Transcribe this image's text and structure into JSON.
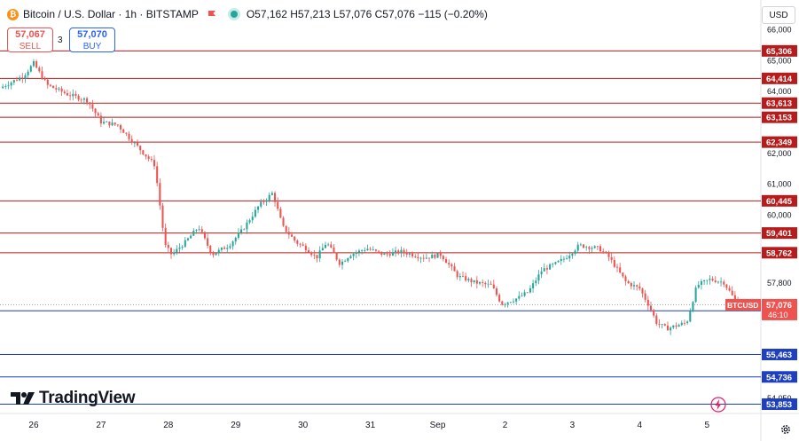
{
  "header": {
    "symbol_title": "Bitcoin / U.S. Dollar · 1h · BITSTAMP",
    "ohlc": "O57,162 H57,213 L57,076 C57,076 −115 (−0.20%)"
  },
  "trade": {
    "sell_price": "57,067",
    "sell_label": "SELL",
    "spread": "3",
    "buy_price": "57,070",
    "buy_label": "BUY"
  },
  "currency": "USD",
  "brand": "TradingView",
  "colors": {
    "up": "#26a69a",
    "down": "#ef5350",
    "resistance": "#b71c1c",
    "support": "#1e3fbf",
    "axis_text": "#131722"
  },
  "chart_data": {
    "type": "candlestick",
    "x_ticks": [
      {
        "label": "26",
        "x": 0.5
      },
      {
        "label": "27",
        "x": 1.5
      },
      {
        "label": "28",
        "x": 2.5
      },
      {
        "label": "29",
        "x": 3.5
      },
      {
        "label": "30",
        "x": 4.5
      },
      {
        "label": "31",
        "x": 5.5
      },
      {
        "label": "Sep",
        "x": 6.5
      },
      {
        "label": "2",
        "x": 7.5
      },
      {
        "label": "3",
        "x": 8.5
      },
      {
        "label": "4",
        "x": 9.5
      },
      {
        "label": "5",
        "x": 10.5
      }
    ],
    "xlim": [
      0,
      11.3
    ],
    "ylim": [
      53550,
      66150
    ],
    "y_ticks": [
      66000,
      65000,
      64000,
      62000,
      61000,
      60000,
      57800,
      54050
    ],
    "y_tick_labels": [
      "66,000",
      "65,000",
      "64,000",
      "62,000",
      "61,000",
      "60,000",
      "57,800",
      "54,050"
    ],
    "resistance_levels": [
      {
        "value": 65306,
        "label": "65,306"
      },
      {
        "value": 64414,
        "label": "64,414"
      },
      {
        "value": 63613,
        "label": "63,613"
      },
      {
        "value": 63153,
        "label": "63,153"
      },
      {
        "value": 62349,
        "label": "62,349"
      },
      {
        "value": 60445,
        "label": "60,445"
      },
      {
        "value": 59401,
        "label": "59,401"
      },
      {
        "value": 58762,
        "label": "58,762"
      }
    ],
    "support_levels": [
      {
        "value": 56880,
        "label": "56,880"
      },
      {
        "value": 55463,
        "label": "55,463"
      },
      {
        "value": 54736,
        "label": "54,736"
      },
      {
        "value": 53853,
        "label": "53,853"
      }
    ],
    "current_price": {
      "value": 57076,
      "symbol": "BTCUSD",
      "price_label": "57,076",
      "countdown": "46:10"
    },
    "close_path": [
      [
        0.0,
        64100
      ],
      [
        0.35,
        64500
      ],
      [
        0.5,
        64900
      ],
      [
        0.7,
        64200
      ],
      [
        1.0,
        63900
      ],
      [
        1.3,
        63700
      ],
      [
        1.5,
        63000
      ],
      [
        1.75,
        62900
      ],
      [
        2.0,
        62300
      ],
      [
        2.3,
        61600
      ],
      [
        2.45,
        59000
      ],
      [
        2.55,
        58700
      ],
      [
        2.75,
        59100
      ],
      [
        2.95,
        59600
      ],
      [
        3.15,
        58700
      ],
      [
        3.4,
        59000
      ],
      [
        3.6,
        59500
      ],
      [
        3.85,
        60300
      ],
      [
        4.05,
        60700
      ],
      [
        4.2,
        59600
      ],
      [
        4.4,
        59100
      ],
      [
        4.55,
        58900
      ],
      [
        4.7,
        58600
      ],
      [
        4.85,
        59100
      ],
      [
        5.05,
        58400
      ],
      [
        5.2,
        58700
      ],
      [
        5.45,
        58900
      ],
      [
        5.7,
        58700
      ],
      [
        5.95,
        58800
      ],
      [
        6.3,
        58600
      ],
      [
        6.55,
        58700
      ],
      [
        6.8,
        58000
      ],
      [
        7.05,
        57800
      ],
      [
        7.3,
        57700
      ],
      [
        7.45,
        57100
      ],
      [
        7.7,
        57300
      ],
      [
        7.85,
        57500
      ],
      [
        8.05,
        58200
      ],
      [
        8.25,
        58400
      ],
      [
        8.4,
        58600
      ],
      [
        8.6,
        59000
      ],
      [
        8.9,
        58900
      ],
      [
        9.05,
        58600
      ],
      [
        9.3,
        57800
      ],
      [
        9.5,
        57600
      ],
      [
        9.65,
        57000
      ],
      [
        9.75,
        56500
      ],
      [
        9.9,
        56300
      ],
      [
        10.05,
        56400
      ],
      [
        10.2,
        56500
      ],
      [
        10.35,
        57700
      ],
      [
        10.55,
        57900
      ],
      [
        10.75,
        57800
      ],
      [
        10.95,
        57100
      ],
      [
        11.1,
        57076
      ]
    ]
  }
}
